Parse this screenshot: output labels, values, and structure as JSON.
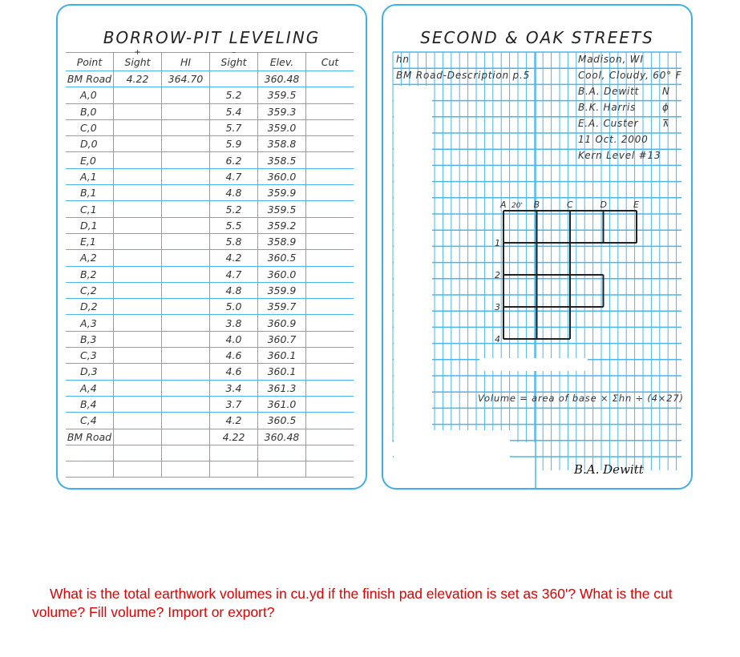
{
  "left_page": {
    "title": "BORROW-PIT LEVELING",
    "headers": [
      "Point",
      "Sight",
      "HI",
      "Sight",
      "Elev.",
      "Cut"
    ],
    "header_signs": [
      "+",
      "–"
    ],
    "rows": [
      [
        "BM Road",
        "4.22",
        "364.70",
        "",
        "360.48",
        ""
      ],
      [
        "A,0",
        "",
        "",
        "5.2",
        "359.5",
        ""
      ],
      [
        "B,0",
        "",
        "",
        "5.4",
        "359.3",
        ""
      ],
      [
        "C,0",
        "",
        "",
        "5.7",
        "359.0",
        ""
      ],
      [
        "D,0",
        "",
        "",
        "5.9",
        "358.8",
        ""
      ],
      [
        "E,0",
        "",
        "",
        "6.2",
        "358.5",
        ""
      ],
      [
        "A,1",
        "",
        "",
        "4.7",
        "360.0",
        ""
      ],
      [
        "B,1",
        "",
        "",
        "4.8",
        "359.9",
        ""
      ],
      [
        "C,1",
        "",
        "",
        "5.2",
        "359.5",
        ""
      ],
      [
        "D,1",
        "",
        "",
        "5.5",
        "359.2",
        ""
      ],
      [
        "E,1",
        "",
        "",
        "5.8",
        "358.9",
        ""
      ],
      [
        "A,2",
        "",
        "",
        "4.2",
        "360.5",
        ""
      ],
      [
        "B,2",
        "",
        "",
        "4.7",
        "360.0",
        ""
      ],
      [
        "C,2",
        "",
        "",
        "4.8",
        "359.9",
        ""
      ],
      [
        "D,2",
        "",
        "",
        "5.0",
        "359.7",
        ""
      ],
      [
        "A,3",
        "",
        "",
        "3.8",
        "360.9",
        ""
      ],
      [
        "B,3",
        "",
        "",
        "4.0",
        "360.7",
        ""
      ],
      [
        "C,3",
        "",
        "",
        "4.6",
        "360.1",
        ""
      ],
      [
        "D,3",
        "",
        "",
        "4.6",
        "360.1",
        ""
      ],
      [
        "A,4",
        "",
        "",
        "3.4",
        "361.3",
        ""
      ],
      [
        "B,4",
        "",
        "",
        "3.7",
        "361.0",
        ""
      ],
      [
        "C,4",
        "",
        "",
        "4.2",
        "360.5",
        ""
      ],
      [
        "BM Road",
        "",
        "",
        "4.22",
        "360.48",
        ""
      ],
      [
        "",
        "",
        "",
        "",
        "",
        ""
      ],
      [
        "",
        "",
        "",
        "",
        "",
        ""
      ]
    ]
  },
  "right_page": {
    "title": "SECOND & OAK STREETS",
    "hn": "hn",
    "bm_note": "BM Road-Description p.5",
    "info": [
      "Madison, WI",
      "Cool, Cloudy, 60° F",
      "B.A. Dewitt",
      "B.K. Harris",
      "E.A. Custer",
      "11 Oct.  2000",
      "Kern Level  #13"
    ],
    "crew_symbols": [
      "N",
      "ϕ",
      "⊼"
    ],
    "grid_cols": [
      "A",
      "B",
      "C",
      "D",
      "E"
    ],
    "grid_rows": [
      "1",
      "2",
      "3",
      "4"
    ],
    "spacing_label": "20'",
    "formula": "Volume = area of base × Σhn ÷ (4×27)",
    "signature": "B.A. Dewitt"
  },
  "question": "What is the total earthwork volumes in cu.yd if the finish pad elevation is set as 360'? What is the cut volume? Fill volume? Import or export?",
  "colors": {
    "grid": "#4bb6ea",
    "question": "#e00000"
  }
}
